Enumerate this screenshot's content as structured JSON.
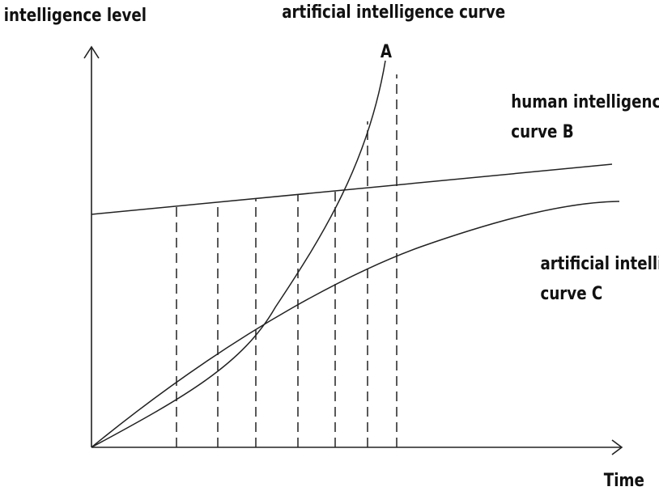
{
  "labels": {
    "y_axis": "intelligence level",
    "x_axis": "Time",
    "curve_a_line1": "artificial intelligence curve",
    "curve_a_line2": "A",
    "curve_b_line1": "human intelligence",
    "curve_b_line2": "curve B",
    "curve_c_line1": "artificial intelligence",
    "curve_c_line2": "curve C"
  },
  "colors": {
    "ink": "#222222",
    "background": "#ffffff"
  }
}
